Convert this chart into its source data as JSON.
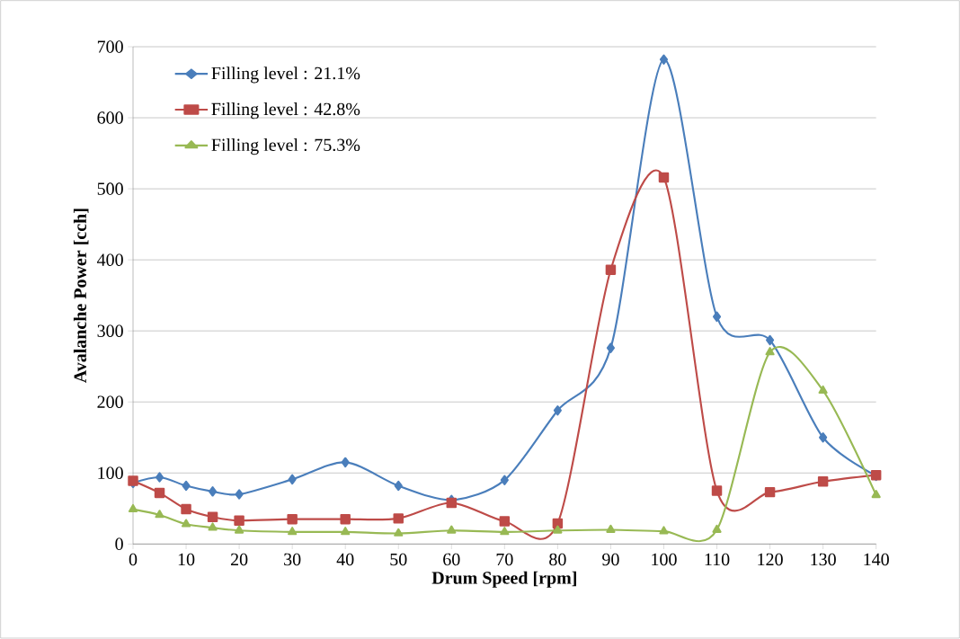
{
  "chart_data": {
    "type": "line",
    "xlabel": "Drum Speed [rpm]",
    "ylabel": "Avalanche Power [cch]",
    "x": [
      0,
      5,
      10,
      15,
      20,
      30,
      40,
      50,
      60,
      70,
      80,
      90,
      100,
      110,
      120,
      130,
      140
    ],
    "series": [
      {
        "name": "Filling level : 21.1%",
        "color": "#4a7ebb",
        "marker": "diamond",
        "values": [
          86,
          94,
          82,
          74,
          70,
          91,
          115,
          82,
          62,
          90,
          188,
          276,
          682,
          320,
          287,
          150,
          96
        ]
      },
      {
        "name": "Filling level : 42.8%",
        "color": "#be4b48",
        "marker": "square",
        "values": [
          89,
          72,
          49,
          38,
          33,
          35,
          35,
          36,
          58,
          32,
          29,
          386,
          516,
          75,
          73,
          88,
          97
        ]
      },
      {
        "name": "Filling level : 75.3%",
        "color": "#98b954",
        "marker": "triangle",
        "values": [
          49,
          41,
          28,
          23,
          19,
          17,
          17,
          15,
          19,
          17,
          19,
          20,
          18,
          20,
          270,
          216,
          69
        ]
      }
    ],
    "xlim": [
      0,
      140
    ],
    "ylim": [
      0,
      700
    ],
    "xticks": [
      0,
      10,
      20,
      30,
      40,
      50,
      60,
      70,
      80,
      90,
      100,
      110,
      120,
      130,
      140
    ],
    "yticks": [
      0,
      100,
      200,
      300,
      400,
      500,
      600,
      700
    ],
    "grid": "y",
    "legend": "top left",
    "line_style": "solid"
  }
}
